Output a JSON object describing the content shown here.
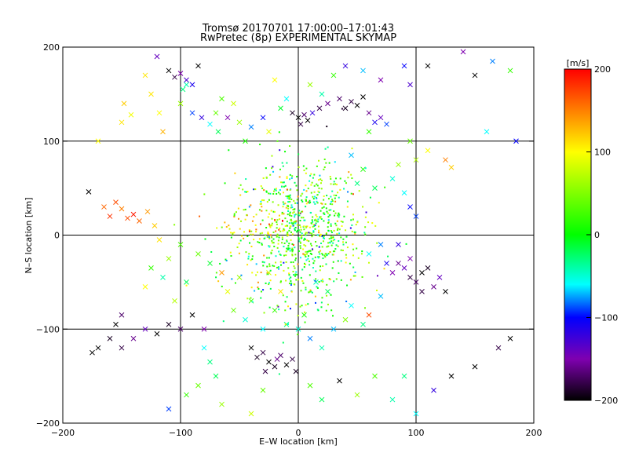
{
  "chart_data": {
    "type": "scatter",
    "title": "Tromsø 20170701 17:00:00–17:01:43",
    "subtitle": "RwPretec (8p) EXPERIMENTAL SKYMAP",
    "xlabel": "E–W location [km]",
    "ylabel": "N–S location [km]",
    "xlim": [
      -200,
      200
    ],
    "ylim": [
      -200,
      200
    ],
    "xticks": [
      "−200",
      "−100",
      "0",
      "100",
      "200"
    ],
    "yticks": [
      "−200",
      "−100",
      "0",
      "100",
      "200"
    ],
    "grid_lines_x": [
      -100,
      0,
      100
    ],
    "grid_lines_y": [
      -100,
      0,
      100
    ],
    "grid": "lines at ±100 and 0",
    "colorbar": {
      "label": "[m/s]",
      "range": [
        -200,
        200
      ],
      "ticks": [
        "200",
        "100",
        "0",
        "−100",
        "−200"
      ],
      "stops": [
        {
          "v": 200,
          "color": "#ff0000"
        },
        {
          "v": 100,
          "color": "#ffff00"
        },
        {
          "v": 0,
          "color": "#00ff00"
        },
        {
          "v": -60,
          "color": "#00ffff"
        },
        {
          "v": -100,
          "color": "#0000ff"
        },
        {
          "v": -150,
          "color": "#7f00b0"
        },
        {
          "v": -200,
          "color": "#000000"
        }
      ]
    },
    "markers": {
      "small_dots": "point",
      "large": "x"
    },
    "series": [
      {
        "values": [
          [
            -148,
            140,
            120
          ],
          [
            -142,
            128,
            95
          ],
          [
            -150,
            120,
            110
          ],
          [
            -125,
            150,
            110
          ],
          [
            -115,
            110,
            130
          ],
          [
            -118,
            130,
            100
          ],
          [
            -100,
            140,
            60
          ],
          [
            -98,
            155,
            -30
          ],
          [
            -95,
            160,
            -40
          ],
          [
            -90,
            130,
            -90
          ],
          [
            -82,
            125,
            -120
          ],
          [
            -75,
            118,
            -60
          ],
          [
            -70,
            130,
            40
          ],
          [
            -68,
            110,
            -20
          ],
          [
            -65,
            145,
            30
          ],
          [
            -60,
            125,
            -150
          ],
          [
            -55,
            140,
            80
          ],
          [
            -50,
            120,
            60
          ],
          [
            -45,
            100,
            10
          ],
          [
            -40,
            115,
            -80
          ],
          [
            -30,
            125,
            -100
          ],
          [
            -25,
            110,
            90
          ],
          [
            -15,
            135,
            -10
          ],
          [
            -10,
            145,
            -60
          ],
          [
            -5,
            130,
            -190
          ],
          [
            0,
            125,
            -200
          ],
          [
            2,
            118,
            -180
          ],
          [
            5,
            128,
            -170
          ],
          [
            8,
            122,
            -200
          ],
          [
            12,
            130,
            -120
          ],
          [
            18,
            135,
            -180
          ],
          [
            25,
            140,
            -160
          ],
          [
            35,
            145,
            -170
          ],
          [
            40,
            135,
            -190
          ],
          [
            45,
            142,
            -180
          ],
          [
            50,
            138,
            -200
          ],
          [
            55,
            147,
            -200
          ],
          [
            60,
            130,
            -160
          ],
          [
            65,
            120,
            -110
          ],
          [
            70,
            125,
            -140
          ],
          [
            75,
            118,
            -90
          ],
          [
            20,
            150,
            -40
          ],
          [
            10,
            160,
            60
          ],
          [
            -20,
            165,
            100
          ],
          [
            30,
            170,
            20
          ],
          [
            40,
            180,
            -120
          ],
          [
            55,
            175,
            -70
          ],
          [
            70,
            165,
            -150
          ],
          [
            90,
            180,
            -100
          ],
          [
            95,
            160,
            -130
          ],
          [
            110,
            180,
            -200
          ],
          [
            140,
            195,
            -150
          ],
          [
            150,
            170,
            -200
          ],
          [
            165,
            185,
            -80
          ],
          [
            180,
            175,
            20
          ],
          [
            185,
            100,
            -100
          ],
          [
            160,
            110,
            -60
          ],
          [
            -120,
            190,
            -140
          ],
          [
            -110,
            175,
            -200
          ],
          [
            -105,
            168,
            -180
          ],
          [
            -100,
            172,
            -150
          ],
          [
            -95,
            165,
            -130
          ],
          [
            -90,
            160,
            -110
          ],
          [
            -85,
            180,
            -200
          ],
          [
            -130,
            170,
            110
          ],
          [
            -170,
            100,
            100
          ],
          [
            -178,
            46,
            -200
          ],
          [
            -165,
            30,
            160
          ],
          [
            -160,
            20,
            180
          ],
          [
            -155,
            35,
            170
          ],
          [
            -150,
            28,
            150
          ],
          [
            -145,
            18,
            170
          ],
          [
            -140,
            22,
            190
          ],
          [
            -135,
            15,
            160
          ],
          [
            -128,
            25,
            140
          ],
          [
            -122,
            10,
            120
          ],
          [
            -118,
            -5,
            110
          ],
          [
            -150,
            -85,
            -170
          ],
          [
            -155,
            -95,
            -200
          ],
          [
            -160,
            -110,
            -190
          ],
          [
            -170,
            -120,
            -200
          ],
          [
            -175,
            -125,
            -200
          ],
          [
            -150,
            -120,
            -180
          ],
          [
            -140,
            -110,
            -160
          ],
          [
            -130,
            -100,
            -140
          ],
          [
            -120,
            -105,
            -200
          ],
          [
            -110,
            -95,
            -190
          ],
          [
            -100,
            -100,
            -170
          ],
          [
            -90,
            -85,
            -200
          ],
          [
            -80,
            -100,
            -150
          ],
          [
            -40,
            -120,
            -200
          ],
          [
            -35,
            -130,
            -190
          ],
          [
            -30,
            -125,
            -180
          ],
          [
            -25,
            -135,
            -200
          ],
          [
            -20,
            -140,
            -190
          ],
          [
            -15,
            -128,
            -170
          ],
          [
            -10,
            -138,
            -200
          ],
          [
            -5,
            -132,
            -180
          ],
          [
            -2,
            -145,
            -190
          ],
          [
            -28,
            -145,
            -180
          ],
          [
            -18,
            -132,
            -160
          ],
          [
            80,
            -40,
            -150
          ],
          [
            85,
            -30,
            -160
          ],
          [
            90,
            -35,
            -140
          ],
          [
            95,
            -45,
            -180
          ],
          [
            100,
            -50,
            -170
          ],
          [
            105,
            -40,
            -200
          ],
          [
            110,
            -35,
            -190
          ],
          [
            115,
            -55,
            -160
          ],
          [
            120,
            -45,
            -140
          ],
          [
            125,
            -60,
            -200
          ],
          [
            105,
            -60,
            -180
          ],
          [
            95,
            -25,
            -150
          ],
          [
            60,
            -20,
            -60
          ],
          [
            70,
            -10,
            -80
          ],
          [
            75,
            -30,
            -110
          ],
          [
            85,
            -10,
            -120
          ],
          [
            100,
            20,
            -90
          ],
          [
            95,
            30,
            -100
          ],
          [
            90,
            45,
            -60
          ],
          [
            80,
            60,
            -50
          ],
          [
            85,
            75,
            60
          ],
          [
            100,
            80,
            70
          ],
          [
            110,
            90,
            100
          ],
          [
            125,
            80,
            150
          ],
          [
            130,
            72,
            120
          ],
          [
            95,
            100,
            40
          ],
          [
            60,
            110,
            20
          ],
          [
            45,
            85,
            -70
          ],
          [
            50,
            55,
            -30
          ],
          [
            55,
            70,
            10
          ],
          [
            65,
            50,
            -20
          ],
          [
            -80,
            -120,
            -60
          ],
          [
            -75,
            -135,
            -30
          ],
          [
            -70,
            -150,
            -20
          ],
          [
            -85,
            -160,
            40
          ],
          [
            -95,
            -170,
            20
          ],
          [
            -110,
            -185,
            -90
          ],
          [
            -65,
            -180,
            60
          ],
          [
            -40,
            -190,
            80
          ],
          [
            -30,
            -165,
            40
          ],
          [
            10,
            -160,
            30
          ],
          [
            20,
            -175,
            -20
          ],
          [
            35,
            -155,
            -200
          ],
          [
            50,
            -170,
            60
          ],
          [
            65,
            -150,
            30
          ],
          [
            80,
            -175,
            -40
          ],
          [
            90,
            -150,
            -30
          ],
          [
            100,
            -190,
            -60
          ],
          [
            115,
            -165,
            -120
          ],
          [
            130,
            -150,
            -200
          ],
          [
            150,
            -140,
            -200
          ],
          [
            170,
            -120,
            -180
          ],
          [
            180,
            -110,
            -200
          ],
          [
            -60,
            -60,
            90
          ],
          [
            -50,
            -45,
            60
          ],
          [
            -55,
            -80,
            40
          ],
          [
            -40,
            -70,
            30
          ],
          [
            -45,
            -90,
            -50
          ],
          [
            -30,
            -100,
            -60
          ],
          [
            -20,
            -80,
            20
          ],
          [
            -10,
            -95,
            -30
          ],
          [
            0,
            -100,
            -50
          ],
          [
            5,
            -85,
            10
          ],
          [
            10,
            -110,
            -80
          ],
          [
            20,
            -120,
            -40
          ],
          [
            30,
            -100,
            -70
          ],
          [
            40,
            -90,
            50
          ],
          [
            45,
            -75,
            -60
          ],
          [
            60,
            -85,
            170
          ],
          [
            70,
            -65,
            -70
          ],
          [
            55,
            -95,
            -30
          ],
          [
            25,
            -60,
            -20
          ],
          [
            15,
            -50,
            -40
          ],
          [
            -15,
            -60,
            110
          ],
          [
            -25,
            -40,
            80
          ],
          [
            -65,
            -40,
            140
          ],
          [
            -75,
            -30,
            -10
          ],
          [
            -85,
            -20,
            40
          ],
          [
            -95,
            -50,
            -20
          ],
          [
            -105,
            -70,
            70
          ],
          [
            -115,
            -45,
            -40
          ],
          [
            -125,
            -35,
            20
          ],
          [
            -130,
            -55,
            100
          ],
          [
            -110,
            -25,
            60
          ],
          [
            -100,
            -10,
            30
          ]
        ]
      }
    ]
  }
}
